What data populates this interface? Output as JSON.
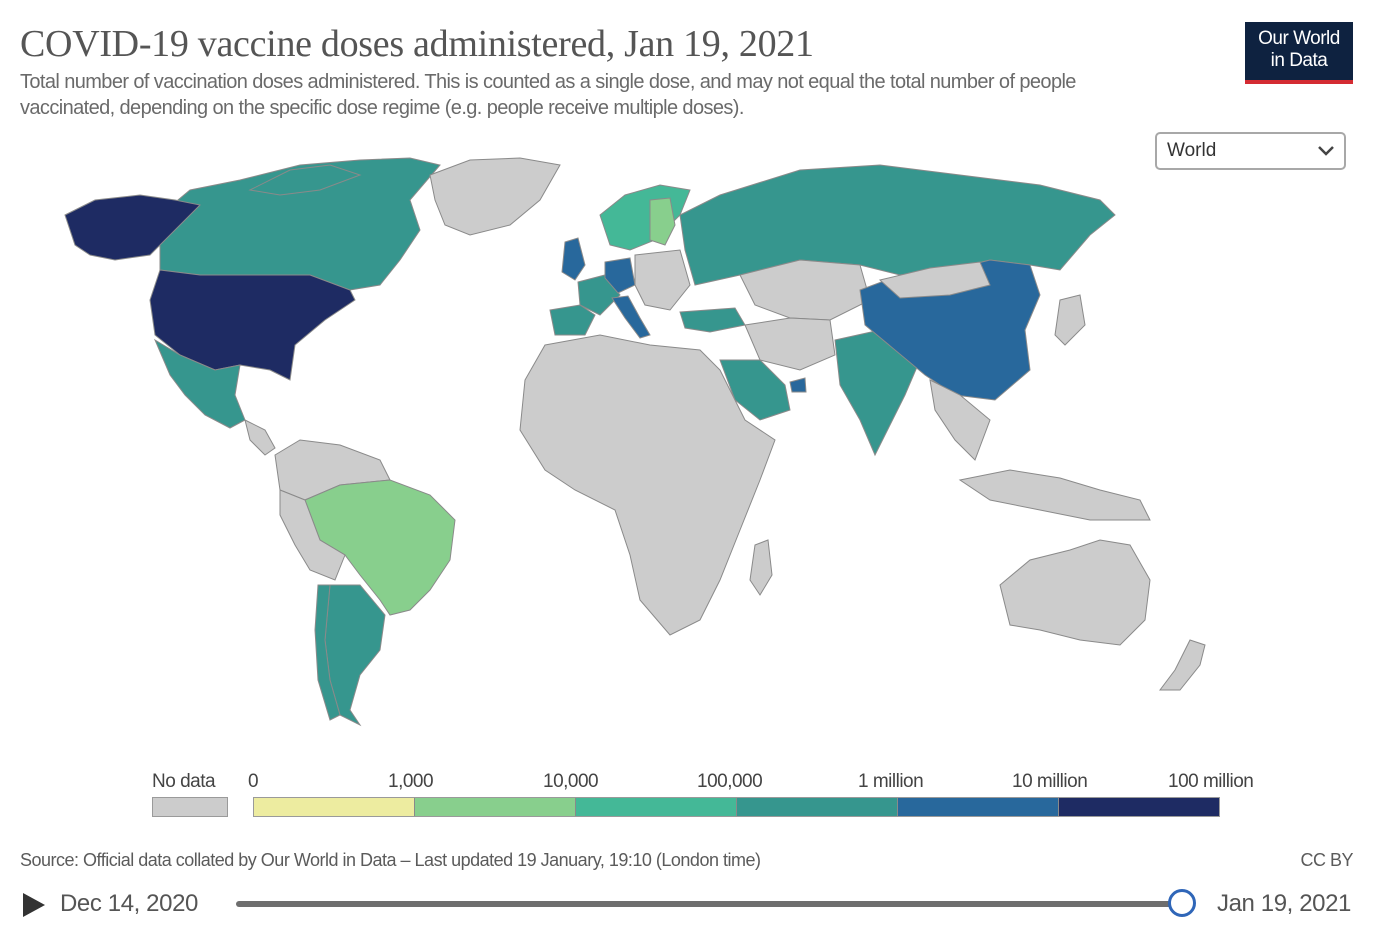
{
  "header": {
    "title": "COVID-19 vaccine doses administered, Jan 19, 2021",
    "subtitle": "Total number of vaccination doses administered. This is counted as a single dose, and may not equal the total number of people vaccinated, depending on the specific dose regime (e.g. people receive multiple doses).",
    "logo_line1": "Our World",
    "logo_line2": "in Data"
  },
  "region_select": {
    "selected": "World"
  },
  "legend": {
    "no_data_label": "No data",
    "no_data_color": "#cccccc",
    "ticks": [
      "0",
      "1,000",
      "10,000",
      "100,000",
      "1 million",
      "10 million",
      "100 million"
    ],
    "bin_colors": [
      "#edeca0",
      "#88cf8d",
      "#44b897",
      "#36968e",
      "#28689c",
      "#1e2b63"
    ]
  },
  "map": {
    "colors": {
      "ocean": "#ffffff",
      "no_data": "#cccccc",
      "border": "#8a8a8a"
    },
    "countries": [
      {
        "name": "United States",
        "bin": 5
      },
      {
        "name": "Alaska",
        "bin": 5
      },
      {
        "name": "Canada",
        "bin": 3
      },
      {
        "name": "Mexico",
        "bin": 3
      },
      {
        "name": "Brazil",
        "bin": 1
      },
      {
        "name": "Argentina",
        "bin": 3
      },
      {
        "name": "Chile",
        "bin": 3
      },
      {
        "name": "United Kingdom",
        "bin": 4
      },
      {
        "name": "Germany",
        "bin": 4
      },
      {
        "name": "Italy",
        "bin": 4
      },
      {
        "name": "Spain",
        "bin": 3
      },
      {
        "name": "France",
        "bin": 3
      },
      {
        "name": "Russia",
        "bin": 3
      },
      {
        "name": "Norway",
        "bin": 2
      },
      {
        "name": "Sweden",
        "bin": 2
      },
      {
        "name": "Finland",
        "bin": 1
      },
      {
        "name": "Turkey",
        "bin": 3
      },
      {
        "name": "Saudi Arabia",
        "bin": 3
      },
      {
        "name": "United Arab Emirates",
        "bin": 4
      },
      {
        "name": "India",
        "bin": 3
      },
      {
        "name": "China",
        "bin": 4
      },
      {
        "name": "Greenland",
        "bin": null
      },
      {
        "name": "Africa",
        "bin": null
      },
      {
        "name": "Australia",
        "bin": null
      }
    ]
  },
  "footer": {
    "source": "Source: Official data collated by Our World in Data – Last updated 19 January, 19:10 (London time)",
    "license": "CC BY"
  },
  "timeline": {
    "start_label": "Dec 14, 2020",
    "end_label": "Jan 19, 2021",
    "position": 1.0
  }
}
